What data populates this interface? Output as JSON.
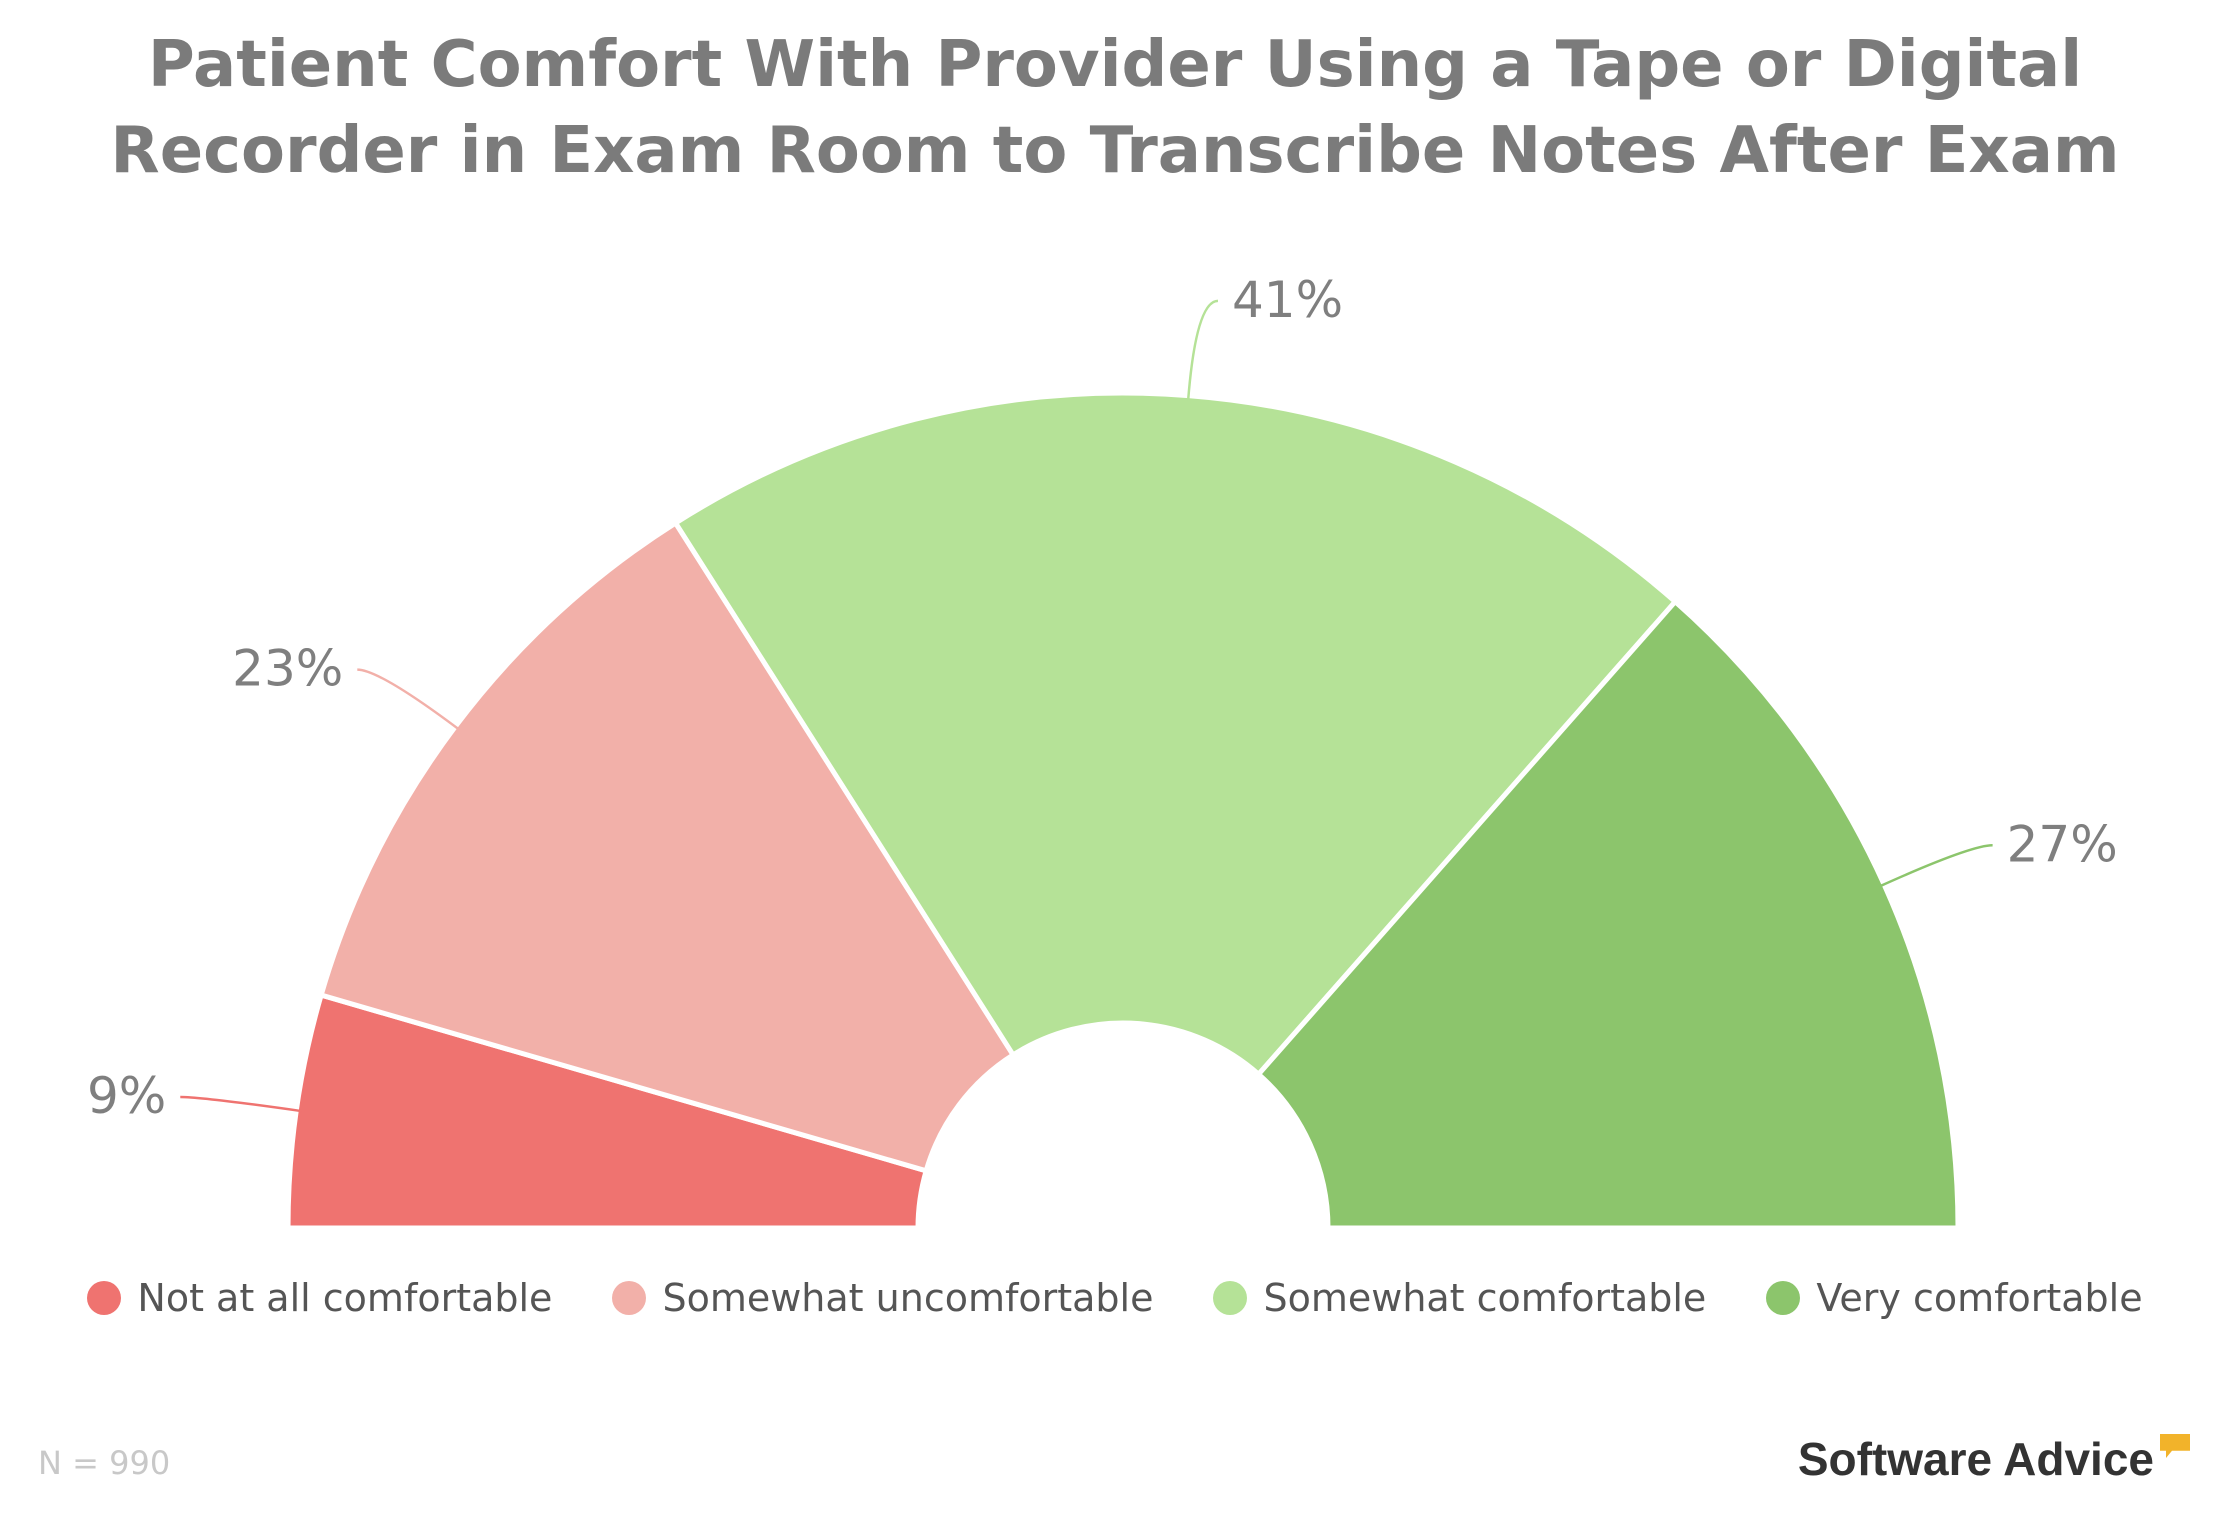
{
  "chart_data": {
    "type": "pie",
    "variant": "semi-donut",
    "title_lines": [
      "Patient Comfort With Provider Using a Tape or Digital",
      "Recorder in Exam Room to Transcribe Notes After Exam"
    ],
    "categories": [
      "Not at all comfortable",
      "Somewhat uncomfortable",
      "Somewhat comfortable",
      "Very comfortable"
    ],
    "values": [
      9,
      23,
      41,
      27
    ],
    "labels": [
      "9%",
      "23%",
      "41%",
      "27%"
    ],
    "colors": [
      "#ef7370",
      "#f2b0a9",
      "#b5e297",
      "#8cc56c"
    ],
    "label_color": "#7f7f7f",
    "legend_position": "bottom",
    "note": "N = 990"
  },
  "branding": {
    "text": "Software Advice"
  }
}
